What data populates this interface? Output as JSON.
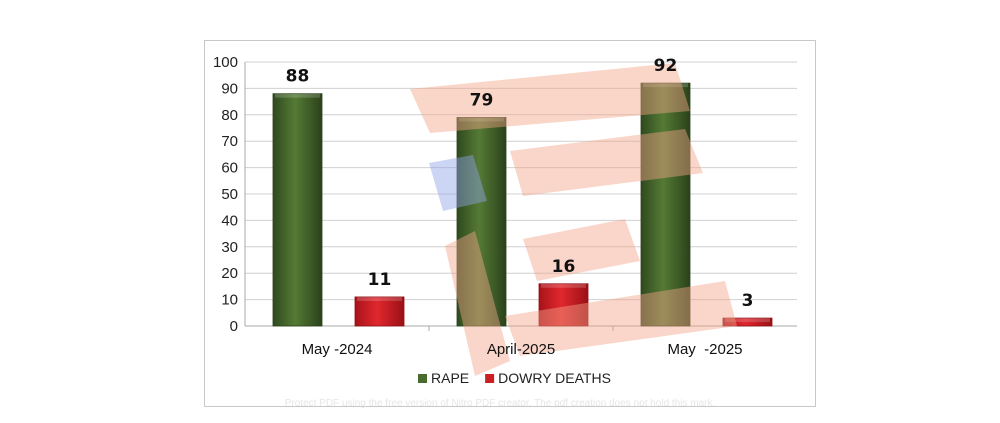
{
  "chart_data": {
    "type": "bar",
    "categories": [
      "May -2024",
      "April-2025",
      "May  -2025"
    ],
    "series": [
      {
        "name": "RAPE",
        "values": [
          88,
          79,
          92
        ],
        "color": "#4a6b30"
      },
      {
        "name": "DOWRY DEATHS",
        "values": [
          11,
          16,
          3
        ],
        "color": "#cc1f24"
      }
    ],
    "ylim": [
      0,
      100
    ],
    "yticks": [
      0,
      10,
      20,
      30,
      40,
      50,
      60,
      70,
      80,
      90,
      100
    ],
    "grid": true,
    "legend": "bottom",
    "data_labels": true
  },
  "watermark": {
    "text": "Protect PDF using the free version of Nitro PDF creator. The pdf creation does not hold this mark.",
    "colors": [
      "#f4a488",
      "#8fa3e8"
    ]
  }
}
